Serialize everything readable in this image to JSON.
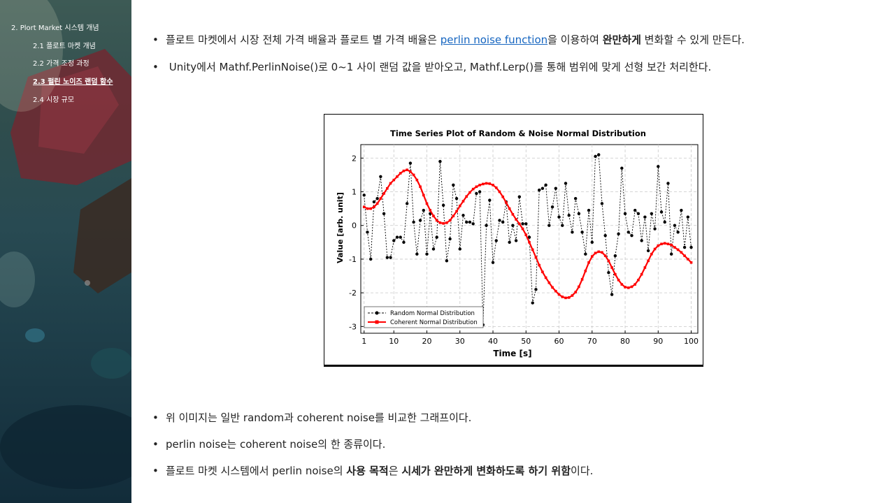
{
  "sidebar": {
    "items": [
      {
        "label": "2. Plort Market 시스템 개념",
        "level": 1,
        "active": false
      },
      {
        "label": "2.1 플로트 마켓 개념",
        "level": 2,
        "active": false
      },
      {
        "label": "2.2 가격 조정 과정",
        "level": 2,
        "active": false
      },
      {
        "label": "2.3 펄린 노이즈 랜덤 함수",
        "level": 2,
        "active": true
      },
      {
        "label": "2.4 시장 규모",
        "level": 2,
        "active": false
      }
    ]
  },
  "bullets_top": [
    {
      "pre": "플로트 마켓에서 시장 전체 가격 배율과 플로트 별 가격 배율은 ",
      "link": "perlin noise function",
      "mid": "을 이용하여 ",
      "bold": "완만하게",
      "post": " 변화할 수 있게 만든다."
    },
    {
      "text": " Unity에서 Mathf.PerlinNoise()로 0~1 사이 랜덤 값을 받아오고, Mathf.Lerp()를 통해 범위에 맞게 선형 보간 처리한다."
    }
  ],
  "bullets_bottom": [
    {
      "text": "위 이미지는 일반 random과 coherent noise를 비교한 그래프이다."
    },
    {
      "text": "perlin noise는 coherent noise의 한 종류이다."
    },
    {
      "pre": "플로트 마켓 시스템에서 perlin noise의 ",
      "bold1": "사용 목적",
      "mid": "은 ",
      "bold2": "시세가 완만하게 변화하도록 하기 위함",
      "post": "이다."
    }
  ],
  "chart_data": {
    "type": "line",
    "title": "Time Series Plot of Random & Noise Normal Distribution",
    "xlabel": "Time [s]",
    "ylabel": "Value [arb. unit]",
    "xlim": [
      0,
      102
    ],
    "ylim": [
      -3.2,
      2.4
    ],
    "xticks": [
      1,
      10,
      20,
      30,
      40,
      50,
      60,
      70,
      80,
      90,
      100
    ],
    "yticks": [
      -3,
      -2,
      -1,
      0,
      1,
      2
    ],
    "grid": true,
    "legend_position": "lower-left",
    "series": [
      {
        "name": "Random Normal Distribution",
        "color": "#000000",
        "style": "dashed-dots",
        "x": [
          1,
          2,
          3,
          4,
          5,
          6,
          7,
          8,
          9,
          10,
          11,
          12,
          13,
          14,
          15,
          16,
          17,
          18,
          19,
          20,
          21,
          22,
          23,
          24,
          25,
          26,
          27,
          28,
          29,
          30,
          31,
          32,
          33,
          34,
          35,
          36,
          37,
          38,
          39,
          40,
          41,
          42,
          43,
          44,
          45,
          46,
          47,
          48,
          49,
          50,
          51,
          52,
          53,
          54,
          55,
          56,
          57,
          58,
          59,
          60,
          61,
          62,
          63,
          64,
          65,
          66,
          67,
          68,
          69,
          70,
          71,
          72,
          73,
          74,
          75,
          76,
          77,
          78,
          79,
          80,
          81,
          82,
          83,
          84,
          85,
          86,
          87,
          88,
          89,
          90,
          91,
          92,
          93,
          94,
          95,
          96,
          97,
          98,
          99,
          100
        ],
        "y": [
          0.9,
          -0.2,
          -1.0,
          0.7,
          0.8,
          1.45,
          0.35,
          -0.95,
          -0.95,
          -0.45,
          -0.35,
          -0.35,
          -0.5,
          0.65,
          1.85,
          0.1,
          -0.85,
          0.15,
          0.45,
          -0.85,
          0.35,
          -0.7,
          -0.35,
          1.9,
          0.6,
          -1.05,
          -0.4,
          1.2,
          0.8,
          -0.7,
          0.3,
          0.1,
          0.1,
          0.05,
          0.95,
          1.0,
          -2.95,
          0.0,
          0.75,
          -1.1,
          -0.45,
          0.15,
          0.1,
          0.7,
          -0.5,
          0.0,
          -0.45,
          0.85,
          0.05,
          0.05,
          -0.35,
          -2.3,
          -1.9,
          1.05,
          1.1,
          1.2,
          0.0,
          0.55,
          1.1,
          0.25,
          0.0,
          1.25,
          0.3,
          -0.2,
          0.8,
          0.35,
          -0.2,
          -0.85,
          0.45,
          -0.5,
          2.05,
          2.1,
          0.65,
          -0.3,
          -1.4,
          -2.05,
          -0.9,
          -0.25,
          1.7,
          0.35,
          -0.2,
          -0.3,
          0.45,
          0.35,
          -0.45,
          0.25,
          -0.75,
          0.35,
          -0.1,
          1.75,
          0.4,
          0.1,
          1.25,
          -0.85,
          0.0,
          -0.2,
          0.45,
          -0.65,
          0.25,
          -0.65
        ]
      },
      {
        "name": "Coherent Normal Distribution",
        "color": "#ff0000",
        "style": "solid-squares",
        "x": [
          1,
          2,
          3,
          4,
          5,
          6,
          7,
          8,
          9,
          10,
          11,
          12,
          13,
          14,
          15,
          16,
          17,
          18,
          19,
          20,
          21,
          22,
          23,
          24,
          25,
          26,
          27,
          28,
          29,
          30,
          31,
          32,
          33,
          34,
          35,
          36,
          37,
          38,
          39,
          40,
          41,
          42,
          43,
          44,
          45,
          46,
          47,
          48,
          49,
          50,
          51,
          52,
          53,
          54,
          55,
          56,
          57,
          58,
          59,
          60,
          61,
          62,
          63,
          64,
          65,
          66,
          67,
          68,
          69,
          70,
          71,
          72,
          73,
          74,
          75,
          76,
          77,
          78,
          79,
          80,
          81,
          82,
          83,
          84,
          85,
          86,
          87,
          88,
          89,
          90,
          91,
          92,
          93,
          94,
          95,
          96,
          97,
          98,
          99,
          100
        ],
        "y": [
          0.55,
          0.5,
          0.5,
          0.55,
          0.65,
          0.8,
          0.95,
          1.1,
          1.25,
          1.35,
          1.45,
          1.55,
          1.62,
          1.65,
          1.6,
          1.5,
          1.35,
          1.15,
          0.9,
          0.65,
          0.45,
          0.28,
          0.15,
          0.08,
          0.06,
          0.08,
          0.15,
          0.28,
          0.42,
          0.58,
          0.72,
          0.86,
          0.98,
          1.08,
          1.15,
          1.2,
          1.23,
          1.25,
          1.24,
          1.2,
          1.12,
          1.0,
          0.85,
          0.68,
          0.5,
          0.33,
          0.18,
          0.05,
          -0.1,
          -0.28,
          -0.5,
          -0.72,
          -0.95,
          -1.18,
          -1.38,
          -1.55,
          -1.7,
          -1.84,
          -1.95,
          -2.05,
          -2.12,
          -2.15,
          -2.14,
          -2.08,
          -1.98,
          -1.82,
          -1.6,
          -1.35,
          -1.1,
          -0.92,
          -0.82,
          -0.78,
          -0.8,
          -0.9,
          -1.05,
          -1.25,
          -1.45,
          -1.62,
          -1.75,
          -1.83,
          -1.85,
          -1.82,
          -1.75,
          -1.62,
          -1.45,
          -1.25,
          -1.05,
          -0.85,
          -0.7,
          -0.6,
          -0.55,
          -0.53,
          -0.55,
          -0.58,
          -0.65,
          -0.72,
          -0.8,
          -0.9,
          -1.0,
          -1.1
        ]
      }
    ]
  }
}
